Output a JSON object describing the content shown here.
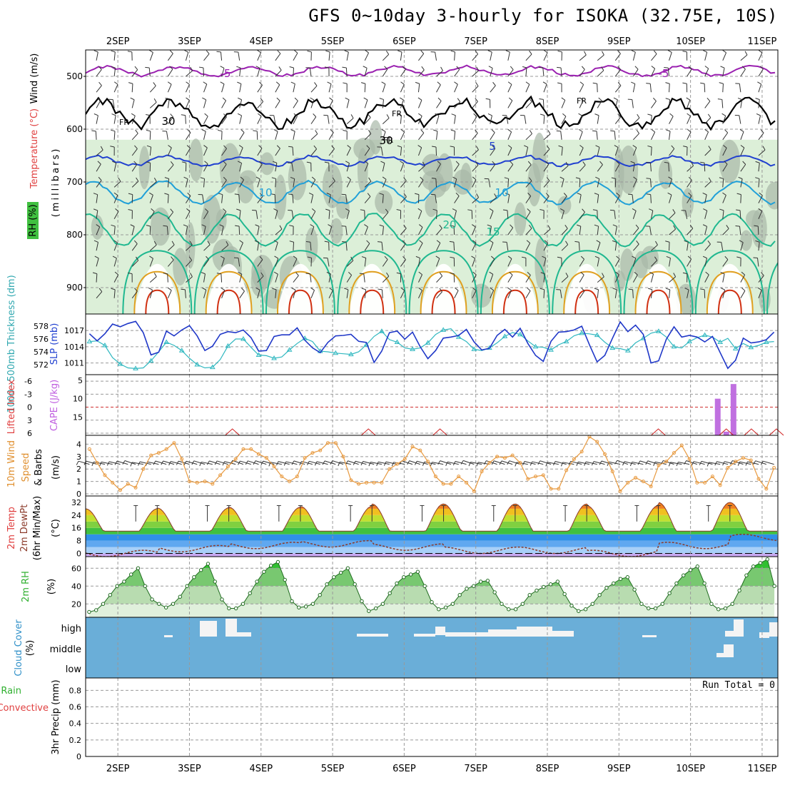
{
  "title": "GFS 0~10day 3-hourly for ISOKA (32.75E, 10S)",
  "colors": {
    "purple": "#9a20b0",
    "black": "#000000",
    "blue": "#2040d0",
    "cyan": "#20a0d8",
    "teal": "#20b890",
    "orange": "#e0a020",
    "red": "#d03010",
    "rh_fill": "#dcefd8",
    "rh_gray": "#a8b8a8",
    "slp": "#2038c8",
    "thick": "#30b8c0",
    "cape": "#c070e0",
    "li": "#d02020",
    "wind": "#e89a40",
    "barb": "#7a5030",
    "cloud_bg": "#6aaed8",
    "rh2m": "#40c040"
  },
  "chart_data": {
    "type": "meteogram",
    "x_ticks": [
      "2SEP",
      "3SEP",
      "4SEP",
      "5SEP",
      "6SEP",
      "7SEP",
      "8SEP",
      "9SEP",
      "10SEP",
      "11SEP"
    ],
    "x_range_days": [
      1.55,
      11.22
    ],
    "panels": [
      {
        "id": "upper",
        "ylabels": [
          "RH (%)",
          "Temperature (°C)",
          "Wind (m/s)"
        ],
        "yaxis": "(millibars)",
        "y_ticks": [
          500,
          600,
          700,
          800,
          900
        ],
        "y_range": [
          950,
          450
        ],
        "contour_labels": [
          "-5",
          "-5",
          "FR",
          "FR",
          "FR",
          "FR",
          "5",
          "10",
          "10",
          "15",
          "20",
          "30",
          "30"
        ],
        "isotherms": [
          {
            "name": "-5",
            "color": "purple",
            "level": 490,
            "amp": 8
          },
          {
            "name": "FR",
            "color": "black",
            "level": 570,
            "amp": 22
          },
          {
            "name": "5",
            "color": "blue",
            "level": 660,
            "amp": 8
          },
          {
            "name": "10",
            "color": "cyan",
            "level": 720,
            "amp": 20
          },
          {
            "name": "15",
            "color": "teal",
            "level": 790,
            "amp": 30
          }
        ]
      },
      {
        "id": "slp",
        "ylabels": [
          "1000~500mb Thickness (dm)",
          "SLP (mb)"
        ],
        "thick_ticks": [
          572,
          574,
          576,
          578
        ],
        "slp_ticks": [
          1011,
          1014,
          1017
        ],
        "slp_range": [
          1009.5,
          1019
        ],
        "thick_range": [
          571,
          579
        ],
        "slp": [
          1016.4,
          1015.1,
          1016.4,
          1018.2,
          1017.7,
          1018.3,
          1018.7,
          1016.6,
          1012.5,
          1013.0,
          1016.9,
          1016.0,
          1017.1,
          1017.9,
          1016.0,
          1013.3,
          1014.1,
          1016.3,
          1016.8,
          1016.6,
          1017.1,
          1015.7,
          1013.2,
          1013.3,
          1015.9,
          1016.2,
          1016.2,
          1017.5,
          1015.2,
          1013.8,
          1012.9,
          1014.8,
          1016.0,
          1016.1,
          1016.3,
          1015.0,
          1014.8,
          1011.1,
          1013.2,
          1016.6,
          1016.9,
          1015.4,
          1016.7,
          1014.0,
          1011.8,
          1013.3,
          1015.6,
          1015.8,
          1016.1,
          1017.2,
          1014.9,
          1013.4,
          1013.7,
          1016.1,
          1017.2,
          1015.8,
          1017.4,
          1014.6,
          1012.4,
          1011.3,
          1015.0,
          1016.7,
          1016.8,
          1017.1,
          1017.8,
          1014.4,
          1011.2,
          1012.4,
          1015.6,
          1018.6,
          1016.8,
          1018.0,
          1016.3,
          1011.0,
          1011.4,
          1015.4,
          1017.7,
          1015.8,
          1016.1,
          1015.8,
          1014.9,
          1015.9,
          1012.9,
          1010.0,
          1011.5,
          1015.6,
          1014.7,
          1014.9,
          1015.3,
          1016.7
        ],
        "thick": [
          575.6,
          575.7,
          575.0,
          573.1,
          572.1,
          571.5,
          571.4,
          571.5,
          572.6,
          574.0,
          575.5,
          575.0,
          574.2,
          573.0,
          572.0,
          571.5,
          571.6,
          572.8,
          574.9,
          576.0,
          576.0,
          574.7,
          573.5,
          573.4,
          573.0,
          573.2,
          574.3,
          575.3,
          576.1,
          575.6,
          574.1,
          574.0,
          573.8,
          573.7,
          573.6,
          574.0,
          575.1,
          576.4,
          577.2,
          575.9,
          575.5,
          574.6,
          574.4,
          574.6,
          575.4,
          576.7,
          577.4,
          577.6,
          576.3,
          575.6,
          574.4,
          574.2,
          574.6,
          575.4,
          576.4,
          577.0,
          576.7,
          575.7,
          574.8,
          574.7,
          574.3,
          575.1,
          575.6,
          576.5,
          576.9,
          576.8,
          576.6,
          575.5,
          574.6,
          574.5,
          574.2,
          575.4,
          576.1,
          576.9,
          577.2,
          576.3,
          574.8,
          574.6,
          575.6,
          576.2,
          576.6,
          576.3,
          575.5,
          576.1,
          574.5,
          575.3,
          574.7,
          575.0,
          575.5,
          575.6
        ]
      },
      {
        "id": "cape",
        "ylabels": [
          "Lifted Index",
          "CAPE (J/kg)"
        ],
        "li_ticks": [
          -6,
          -3,
          0,
          3,
          6
        ],
        "cape_ticks": [
          5,
          10,
          15
        ],
        "cape_bars": [
          {
            "day": 10.38,
            "value": 10
          },
          {
            "day": 10.5,
            "value": 19
          },
          {
            "day": 10.6,
            "value": 6
          }
        ],
        "li_bumps": [
          3.6,
          5.5,
          6.5,
          9.55,
          10.5,
          10.85,
          11.2
        ]
      },
      {
        "id": "wind",
        "ylabels": [
          "10m Wind Speed & Barbs",
          "(m/s)"
        ],
        "y_ticks": [
          0,
          1,
          2,
          3,
          4
        ],
        "y_range": [
          0,
          4.6
        ],
        "speed": [
          3.6,
          2.5,
          1.5,
          0.9,
          0.3,
          0.8,
          0.5,
          2.0,
          3.1,
          3.3,
          3.6,
          4.1,
          2.8,
          1.0,
          0.9,
          1.0,
          0.8,
          1.5,
          2.2,
          2.8,
          3.6,
          3.6,
          3.2,
          2.9,
          2.2,
          1.4,
          1.0,
          1.4,
          2.9,
          3.3,
          3.5,
          4.1,
          4.1,
          3.0,
          1.1,
          0.8,
          0.9,
          0.9,
          0.9,
          2.0,
          2.4,
          2.8,
          3.8,
          3.5,
          2.6,
          1.4,
          0.8,
          0.8,
          1.4,
          0.9,
          0.2,
          1.8,
          2.5,
          3.0,
          2.9,
          3.1,
          2.5,
          1.2,
          1.4,
          1.5,
          0.4,
          0.4,
          1.9,
          2.8,
          3.4,
          4.6,
          4.2,
          3.2,
          1.8,
          0.2,
          0.9,
          1.3,
          1.0,
          0.6,
          2.3,
          2.6,
          3.3,
          3.9,
          2.8,
          0.9,
          0.9,
          1.4,
          0.7,
          2.1,
          2.6,
          2.9,
          2.7,
          1.2,
          0.4,
          2.1
        ]
      },
      {
        "id": "temp",
        "ylabels": [
          "2m Temp",
          "2m DewPt",
          "(6hr Min/Max)"
        ],
        "yunit": "(°C)",
        "y_ticks": [
          0,
          8,
          16,
          24,
          32
        ],
        "y_range": [
          -2,
          36
        ],
        "day_max": [
          28,
          28.5,
          29,
          29.5,
          31,
          31,
          31,
          30,
          32,
          32
        ],
        "night_min": [
          14,
          14,
          14,
          14,
          14,
          14,
          14,
          14,
          14,
          14
        ],
        "dewpoint": [
          0,
          3,
          5,
          6,
          4,
          2,
          2,
          0,
          5,
          10
        ]
      },
      {
        "id": "rh2m",
        "ylabels": [
          "2m RH"
        ],
        "yunit": "(%)",
        "y_ticks": [
          20,
          40,
          60
        ],
        "y_range": [
          5,
          73
        ],
        "values": [
          11,
          13,
          20,
          30,
          40,
          45,
          53,
          60,
          40,
          25,
          20,
          16,
          20,
          28,
          40,
          50,
          58,
          65,
          45,
          25,
          15,
          15,
          20,
          32,
          45,
          56,
          63,
          67,
          47,
          23,
          16,
          17,
          20,
          30,
          42,
          50,
          55,
          60,
          42,
          23,
          12,
          15,
          20,
          32,
          43,
          50,
          53,
          56,
          40,
          22,
          14,
          16,
          20,
          30,
          37,
          40,
          45,
          46,
          33,
          20,
          14,
          14,
          20,
          30,
          35,
          39,
          42,
          45,
          31,
          18,
          12,
          14,
          20,
          30,
          38,
          43,
          48,
          50,
          36,
          20,
          15,
          15,
          20,
          32,
          43,
          52,
          58,
          62,
          43,
          20,
          14,
          15,
          20,
          35,
          52,
          62,
          66,
          70,
          40
        ]
      },
      {
        "id": "cloud",
        "ylabels": [
          "Cloud Cover",
          "(%)"
        ],
        "y_ticks": [
          "high",
          "middle",
          "low"
        ]
      },
      {
        "id": "precip",
        "ylabels": [
          "Total / Rain",
          "Convective",
          "3hr Precip (mm)"
        ],
        "y_ticks": [
          0,
          0.2,
          0.4,
          0.6,
          0.8
        ],
        "y_range": [
          0,
          0.95
        ],
        "annotation": "Run Total = 0"
      }
    ]
  }
}
